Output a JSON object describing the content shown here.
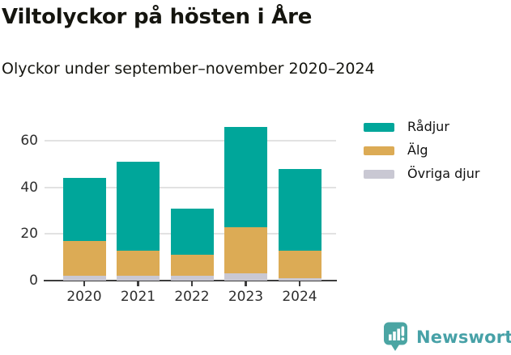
{
  "header": {
    "title": "Viltolyckor på hösten i Åre",
    "subtitle": "Olyckor under september–november 2020–2024"
  },
  "chart_data": {
    "type": "bar",
    "stacked": true,
    "title": "Viltolyckor på hösten i Åre",
    "subtitle": "Olyckor under september–november 2020–2024",
    "categories": [
      "2020",
      "2021",
      "2022",
      "2023",
      "2024"
    ],
    "series": [
      {
        "name": "Rådjur",
        "color": "#00a69a",
        "values": [
          27,
          38,
          20,
          43,
          35
        ]
      },
      {
        "name": "Älg",
        "color": "#dcab55",
        "values": [
          15,
          11,
          9,
          20,
          12
        ]
      },
      {
        "name": "Övriga djur",
        "color": "#c9c8d3",
        "values": [
          2,
          2,
          2,
          3,
          1
        ]
      }
    ],
    "stack_order_bottom_to_top": [
      "Övriga djur",
      "Älg",
      "Rådjur"
    ],
    "totals": [
      44,
      51,
      31,
      66,
      48
    ],
    "xlabel": "",
    "ylabel": "",
    "yticks": [
      0,
      20,
      40,
      60
    ],
    "ylim": [
      0,
      70
    ],
    "grid": true,
    "legend_position": "top-right"
  },
  "branding": {
    "logo_text": "Newsworthy",
    "logo_color": "#47a1a7"
  },
  "colors": {
    "background": "#ffffff",
    "text": "#15150f",
    "axis": "#3d3d3d",
    "gridline": "#e2e2e2"
  }
}
